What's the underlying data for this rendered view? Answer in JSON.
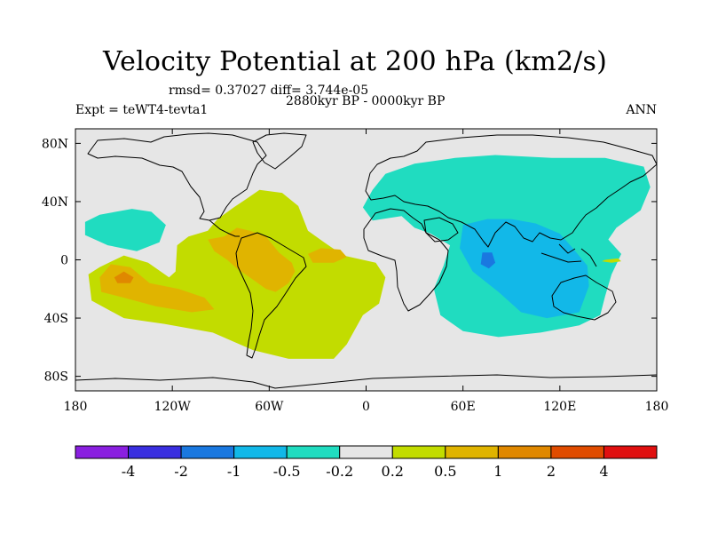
{
  "chart_data": {
    "type": "heatmap",
    "title": "Velocity Potential at 200 hPa (km2/s)",
    "stats_text": "rmsd= 0.37027 diff= 3.744e-05",
    "period_text": "2880kyr BP - 0000kyr BP",
    "experiment_text": "Expt = teWT4-tevta1",
    "season_text": "ANN",
    "xlim": [
      -180,
      180
    ],
    "ylim": [
      -90,
      90
    ],
    "x_ticks": [
      {
        "value": -180,
        "label": "180"
      },
      {
        "value": -120,
        "label": "120W"
      },
      {
        "value": -60,
        "label": "60W"
      },
      {
        "value": 0,
        "label": "0"
      },
      {
        "value": 60,
        "label": "60E"
      },
      {
        "value": 120,
        "label": "120E"
      },
      {
        "value": 180,
        "label": "180"
      }
    ],
    "y_ticks": [
      {
        "value": 80,
        "label": "80N"
      },
      {
        "value": 40,
        "label": "40N"
      },
      {
        "value": 0,
        "label": "0"
      },
      {
        "value": -40,
        "label": "40S"
      },
      {
        "value": -80,
        "label": "80S"
      }
    ],
    "colorbar": {
      "colors": [
        "#8a1fe0",
        "#3a2fe0",
        "#1a78e0",
        "#12b8e8",
        "#20dcc0",
        "#e6e6e6",
        "#c2dc00",
        "#e0b400",
        "#e08800",
        "#e04c00",
        "#e01010"
      ],
      "labels": [
        "-4",
        "-2",
        "-1",
        "-0.5",
        "-0.2",
        "0.2",
        "0.5",
        "1",
        "2",
        "4"
      ]
    },
    "regions": [
      {
        "name": "pacific-atlantic-positive",
        "level": 0.2,
        "lonlat": [
          [
            -165,
            -5
          ],
          [
            -150,
            3
          ],
          [
            -135,
            -2
          ],
          [
            -122,
            -12
          ],
          [
            -118,
            -8
          ],
          [
            -117,
            10
          ],
          [
            -110,
            16
          ],
          [
            -98,
            20
          ],
          [
            -92,
            28
          ],
          [
            -82,
            36
          ],
          [
            -74,
            42
          ],
          [
            -66,
            48
          ],
          [
            -52,
            46
          ],
          [
            -42,
            37
          ],
          [
            -36,
            20
          ],
          [
            -26,
            12
          ],
          [
            -14,
            3
          ],
          [
            6,
            -2
          ],
          [
            12,
            -12
          ],
          [
            8,
            -30
          ],
          [
            -2,
            -38
          ],
          [
            -12,
            -58
          ],
          [
            -20,
            -68
          ],
          [
            -48,
            -68
          ],
          [
            -70,
            -62
          ],
          [
            -95,
            -50
          ],
          [
            -125,
            -44
          ],
          [
            -150,
            -40
          ],
          [
            -170,
            -28
          ],
          [
            -172,
            -10
          ]
        ]
      },
      {
        "name": "south-pacific-core",
        "level": 0.5,
        "lonlat": [
          [
            -165,
            -12
          ],
          [
            -158,
            -3
          ],
          [
            -146,
            -5
          ],
          [
            -134,
            -16
          ],
          [
            -116,
            -20
          ],
          [
            -100,
            -26
          ],
          [
            -94,
            -34
          ],
          [
            -108,
            -36
          ],
          [
            -130,
            -32
          ],
          [
            -150,
            -26
          ],
          [
            -164,
            -22
          ]
        ]
      },
      {
        "name": "south-pacific-max",
        "level": 1.0,
        "lonlat": [
          [
            -156,
            -12
          ],
          [
            -150,
            -8
          ],
          [
            -144,
            -12
          ],
          [
            -146,
            -16
          ],
          [
            -154,
            -16
          ]
        ]
      },
      {
        "name": "south-america-core",
        "level": 0.5,
        "lonlat": [
          [
            -98,
            14
          ],
          [
            -88,
            16
          ],
          [
            -80,
            22
          ],
          [
            -72,
            20
          ],
          [
            -62,
            16
          ],
          [
            -54,
            5
          ],
          [
            -46,
            -2
          ],
          [
            -44,
            -8
          ],
          [
            -48,
            -16
          ],
          [
            -56,
            -22
          ],
          [
            -62,
            -20
          ],
          [
            -72,
            -12
          ],
          [
            -80,
            -6
          ],
          [
            -86,
            0
          ],
          [
            -94,
            6
          ]
        ]
      },
      {
        "name": "atlantic-core",
        "level": 0.5,
        "lonlat": [
          [
            -36,
            4
          ],
          [
            -28,
            8
          ],
          [
            -16,
            7
          ],
          [
            -12,
            2
          ],
          [
            -20,
            -2
          ],
          [
            -33,
            -2
          ]
        ]
      },
      {
        "name": "north-pacific-negative",
        "level": -0.2,
        "lonlat": [
          [
            -174,
            26
          ],
          [
            -165,
            31
          ],
          [
            -145,
            35
          ],
          [
            -133,
            33
          ],
          [
            -124,
            24
          ],
          [
            -128,
            12
          ],
          [
            -142,
            6
          ],
          [
            -160,
            10
          ],
          [
            -174,
            17
          ]
        ]
      },
      {
        "name": "eurasia-indian-negative",
        "level": -0.2,
        "lonlat": [
          [
            4,
            48
          ],
          [
            12,
            59
          ],
          [
            30,
            66
          ],
          [
            55,
            70
          ],
          [
            80,
            72
          ],
          [
            115,
            70
          ],
          [
            148,
            70
          ],
          [
            172,
            64
          ],
          [
            176,
            50
          ],
          [
            170,
            34
          ],
          [
            155,
            22
          ],
          [
            150,
            14
          ],
          [
            158,
            4
          ],
          [
            152,
            -10
          ],
          [
            148,
            -25
          ],
          [
            145,
            -38
          ],
          [
            132,
            -45
          ],
          [
            108,
            -50
          ],
          [
            82,
            -53
          ],
          [
            60,
            -49
          ],
          [
            46,
            -38
          ],
          [
            42,
            -20
          ],
          [
            48,
            -4
          ],
          [
            52,
            10
          ],
          [
            40,
            18
          ],
          [
            30,
            22
          ],
          [
            22,
            30
          ],
          [
            4,
            27
          ],
          [
            -2,
            36
          ]
        ]
      },
      {
        "name": "indian-ocean-negative-core",
        "level": -0.5,
        "lonlat": [
          [
            60,
            24
          ],
          [
            75,
            28
          ],
          [
            90,
            28
          ],
          [
            105,
            25
          ],
          [
            120,
            18
          ],
          [
            128,
            8
          ],
          [
            137,
            -4
          ],
          [
            138,
            -18
          ],
          [
            132,
            -36
          ],
          [
            112,
            -40
          ],
          [
            96,
            -36
          ],
          [
            82,
            -22
          ],
          [
            66,
            -8
          ],
          [
            58,
            8
          ]
        ]
      },
      {
        "name": "bay-of-bengal-min",
        "level": -1.0,
        "lonlat": [
          [
            72,
            5
          ],
          [
            78,
            5
          ],
          [
            80,
            -2
          ],
          [
            76,
            -6
          ],
          [
            71,
            -3
          ]
        ]
      },
      {
        "name": "small-positive-islet",
        "level": 0.2,
        "lonlat": [
          [
            148,
            0
          ],
          [
            156,
            1
          ],
          [
            158,
            -1
          ],
          [
            152,
            -2
          ],
          [
            146,
            -1
          ]
        ]
      }
    ]
  }
}
